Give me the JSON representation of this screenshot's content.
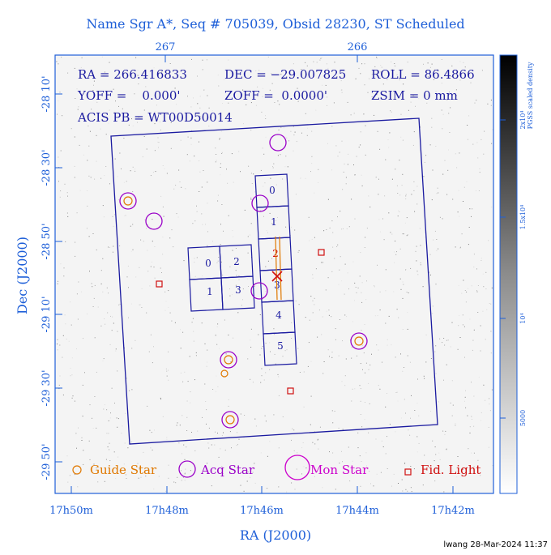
{
  "title": "Name Sgr A*, Seq # 705039, Obsid 28230, ST Scheduled",
  "axes": {
    "xlabel": "RA (J2000)",
    "ylabel": "Dec (J2000)",
    "top_ticks": [
      "267",
      "266"
    ],
    "bottom_ticks": [
      "17h50m",
      "17h48m",
      "17h46m",
      "17h44m",
      "17h42m"
    ],
    "left_ticks": [
      "-28 10'",
      "-28 30'",
      "-28 50'",
      "-29 10'",
      "-29 30'",
      "-29 50'"
    ]
  },
  "info": {
    "line1": [
      "RA = 266.416833",
      "DEC = −29.007825",
      "ROLL = 86.4866"
    ],
    "line2": [
      "YOFF =    0.000'",
      "ZOFF =  0.0000'",
      "ZSIM = 0 mm"
    ],
    "line3": "ACIS PB = WT00D50014"
  },
  "colorbar": {
    "label": "PGSS scaled density",
    "ticks": [
      "2x10⁴",
      "1.5x10⁴",
      "10⁴",
      "5000"
    ]
  },
  "chips": [
    "0",
    "2",
    "1",
    "3",
    "0",
    "1",
    "2",
    "3",
    "4",
    "5"
  ],
  "legend": {
    "guide": "Guide Star",
    "acq": "Acq Star",
    "mon": "Mon Star",
    "fid": "Fid. Light"
  },
  "colors": {
    "axis": "#1e5fd8",
    "title": "#1e5fd8",
    "frame": "#1a1aa0",
    "guide": "#e07800",
    "acq": "#9a00c8",
    "mon": "#cc00cc",
    "fid": "#d01010",
    "info": "#1a1aa0"
  },
  "footer": "lwang 28-Mar-2024 11:37"
}
